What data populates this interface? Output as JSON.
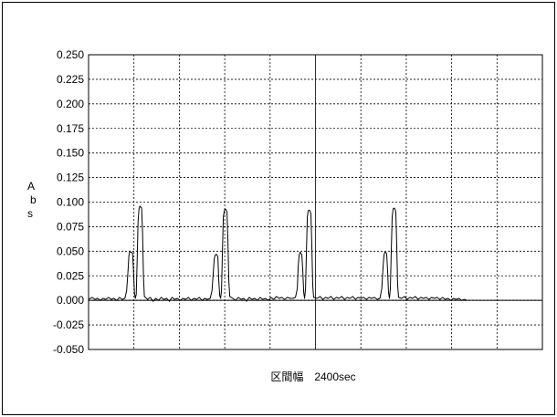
{
  "chart_data": {
    "type": "line",
    "title": "",
    "ylabel": "Abs",
    "xlabel": "区間幅　2400sec",
    "ylim": [
      -0.05,
      0.25
    ],
    "yticks": [
      "0.250",
      "0.225",
      "0.200",
      "0.175",
      "0.150",
      "0.125",
      "0.100",
      "0.075",
      "0.050",
      "0.025",
      "0.000",
      "-0.025",
      "-0.050"
    ],
    "ytick_values": [
      0.25,
      0.225,
      0.2,
      0.175,
      0.15,
      0.125,
      0.1,
      0.075,
      0.05,
      0.025,
      0,
      -0.025,
      -0.05
    ],
    "x_divisions": 10,
    "grid": true,
    "zero_line": true,
    "series": [
      {
        "color": "#000000",
        "points": [
          [
            0.0,
            0.001
          ],
          [
            0.08,
            0.003
          ],
          [
            0.14,
            0.001
          ],
          [
            0.2,
            0.002
          ],
          [
            0.26,
            0.0
          ],
          [
            0.32,
            0.002
          ],
          [
            0.38,
            0.001
          ],
          [
            0.44,
            0.003
          ],
          [
            0.5,
            0.001
          ],
          [
            0.56,
            0.002
          ],
          [
            0.62,
            0.0
          ],
          [
            0.68,
            0.003
          ],
          [
            0.74,
            0.001
          ],
          [
            0.8,
            0.002
          ],
          [
            0.84,
            0.01
          ],
          [
            0.87,
            0.03
          ],
          [
            0.89,
            0.046
          ],
          [
            0.91,
            0.05
          ],
          [
            0.93,
            0.049
          ],
          [
            0.95,
            0.049
          ],
          [
            0.97,
            0.048
          ],
          [
            0.99,
            0.03
          ],
          [
            1.01,
            0.008
          ],
          [
            1.03,
            0.002
          ],
          [
            1.05,
            0.006
          ],
          [
            1.07,
            0.04
          ],
          [
            1.09,
            0.08
          ],
          [
            1.11,
            0.093
          ],
          [
            1.13,
            0.096
          ],
          [
            1.15,
            0.095
          ],
          [
            1.17,
            0.094
          ],
          [
            1.19,
            0.07
          ],
          [
            1.21,
            0.025
          ],
          [
            1.23,
            0.004
          ],
          [
            1.3,
            0.001
          ],
          [
            1.36,
            0.003
          ],
          [
            1.42,
            -0.001
          ],
          [
            1.48,
            0.002
          ],
          [
            1.54,
            0.0
          ],
          [
            1.6,
            0.003
          ],
          [
            1.66,
            0.001
          ],
          [
            1.72,
            0.002
          ],
          [
            1.78,
            -0.001
          ],
          [
            1.84,
            0.003
          ],
          [
            1.9,
            0.001
          ],
          [
            1.96,
            0.002
          ],
          [
            2.02,
            0.0
          ],
          [
            2.08,
            0.002
          ],
          [
            2.14,
            0.001
          ],
          [
            2.2,
            0.003
          ],
          [
            2.26,
            0.0
          ],
          [
            2.32,
            0.002
          ],
          [
            2.38,
            0.001
          ],
          [
            2.44,
            0.003
          ],
          [
            2.5,
            0.0
          ],
          [
            2.56,
            0.002
          ],
          [
            2.62,
            0.001
          ],
          [
            2.68,
            0.002
          ],
          [
            2.72,
            0.01
          ],
          [
            2.75,
            0.03
          ],
          [
            2.77,
            0.043
          ],
          [
            2.79,
            0.046
          ],
          [
            2.81,
            0.047
          ],
          [
            2.83,
            0.046
          ],
          [
            2.85,
            0.044
          ],
          [
            2.87,
            0.02
          ],
          [
            2.89,
            0.005
          ],
          [
            2.91,
            0.002
          ],
          [
            2.93,
            0.01
          ],
          [
            2.95,
            0.05
          ],
          [
            2.97,
            0.085
          ],
          [
            2.99,
            0.091
          ],
          [
            3.01,
            0.093
          ],
          [
            3.03,
            0.092
          ],
          [
            3.05,
            0.09
          ],
          [
            3.07,
            0.06
          ],
          [
            3.09,
            0.02
          ],
          [
            3.11,
            0.004
          ],
          [
            3.18,
            0.002
          ],
          [
            3.24,
            0.0
          ],
          [
            3.3,
            0.003
          ],
          [
            3.36,
            0.001
          ],
          [
            3.42,
            0.002
          ],
          [
            3.48,
            -0.001
          ],
          [
            3.54,
            0.003
          ],
          [
            3.6,
            0.001
          ],
          [
            3.66,
            0.002
          ],
          [
            3.72,
            0.0
          ],
          [
            3.78,
            0.003
          ],
          [
            3.84,
            0.001
          ],
          [
            3.9,
            0.002
          ],
          [
            3.96,
            0.0
          ],
          [
            4.02,
            0.003
          ],
          [
            4.08,
            0.001
          ],
          [
            4.14,
            0.004
          ],
          [
            4.2,
            0.002
          ],
          [
            4.26,
            0.003
          ],
          [
            4.32,
            0.001
          ],
          [
            4.38,
            0.003
          ],
          [
            4.44,
            0.002
          ],
          [
            4.5,
            0.002
          ],
          [
            4.56,
            0.003
          ],
          [
            4.6,
            0.012
          ],
          [
            4.62,
            0.035
          ],
          [
            4.64,
            0.046
          ],
          [
            4.66,
            0.049
          ],
          [
            4.68,
            0.048
          ],
          [
            4.7,
            0.046
          ],
          [
            4.72,
            0.03
          ],
          [
            4.74,
            0.008
          ],
          [
            4.76,
            0.002
          ],
          [
            4.78,
            0.012
          ],
          [
            4.8,
            0.05
          ],
          [
            4.82,
            0.085
          ],
          [
            4.84,
            0.091
          ],
          [
            4.86,
            0.092
          ],
          [
            4.88,
            0.091
          ],
          [
            4.9,
            0.088
          ],
          [
            4.92,
            0.055
          ],
          [
            4.94,
            0.015
          ],
          [
            4.96,
            0.003
          ],
          [
            5.04,
            0.002
          ],
          [
            5.1,
            0.004
          ],
          [
            5.16,
            0.001
          ],
          [
            5.22,
            0.003
          ],
          [
            5.28,
            0.002
          ],
          [
            5.34,
            0.004
          ],
          [
            5.4,
            0.001
          ],
          [
            5.46,
            0.003
          ],
          [
            5.52,
            0.002
          ],
          [
            5.58,
            0.004
          ],
          [
            5.64,
            0.001
          ],
          [
            5.7,
            0.003
          ],
          [
            5.76,
            0.002
          ],
          [
            5.82,
            0.004
          ],
          [
            5.88,
            0.001
          ],
          [
            5.94,
            0.003
          ],
          [
            6.0,
            0.002
          ],
          [
            6.06,
            0.003
          ],
          [
            6.12,
            0.001
          ],
          [
            6.18,
            0.003
          ],
          [
            6.24,
            0.002
          ],
          [
            6.3,
            0.003
          ],
          [
            6.36,
            0.001
          ],
          [
            6.42,
            0.002
          ],
          [
            6.46,
            0.012
          ],
          [
            6.49,
            0.035
          ],
          [
            6.51,
            0.046
          ],
          [
            6.53,
            0.049
          ],
          [
            6.55,
            0.049
          ],
          [
            6.57,
            0.047
          ],
          [
            6.59,
            0.03
          ],
          [
            6.61,
            0.008
          ],
          [
            6.63,
            0.002
          ],
          [
            6.65,
            0.012
          ],
          [
            6.67,
            0.05
          ],
          [
            6.69,
            0.085
          ],
          [
            6.71,
            0.093
          ],
          [
            6.73,
            0.094
          ],
          [
            6.75,
            0.093
          ],
          [
            6.77,
            0.09
          ],
          [
            6.79,
            0.055
          ],
          [
            6.81,
            0.015
          ],
          [
            6.83,
            0.003
          ],
          [
            6.9,
            0.002
          ],
          [
            6.96,
            0.004
          ],
          [
            7.02,
            0.001
          ],
          [
            7.08,
            0.003
          ],
          [
            7.14,
            0.002
          ],
          [
            7.2,
            0.004
          ],
          [
            7.26,
            0.001
          ],
          [
            7.32,
            0.003
          ],
          [
            7.38,
            0.002
          ],
          [
            7.44,
            0.003
          ],
          [
            7.5,
            0.001
          ],
          [
            7.56,
            0.003
          ],
          [
            7.62,
            0.002
          ],
          [
            7.68,
            0.003
          ],
          [
            7.74,
            0.001
          ],
          [
            7.8,
            0.003
          ],
          [
            7.86,
            0.001
          ],
          [
            7.92,
            0.002
          ],
          [
            7.98,
            0.0
          ],
          [
            8.04,
            0.002
          ],
          [
            8.1,
            0.001
          ],
          [
            8.16,
            0.002
          ],
          [
            8.22,
            0.0
          ],
          [
            8.28,
            0.001
          ],
          [
            8.34,
            0.0
          ]
        ]
      }
    ]
  }
}
